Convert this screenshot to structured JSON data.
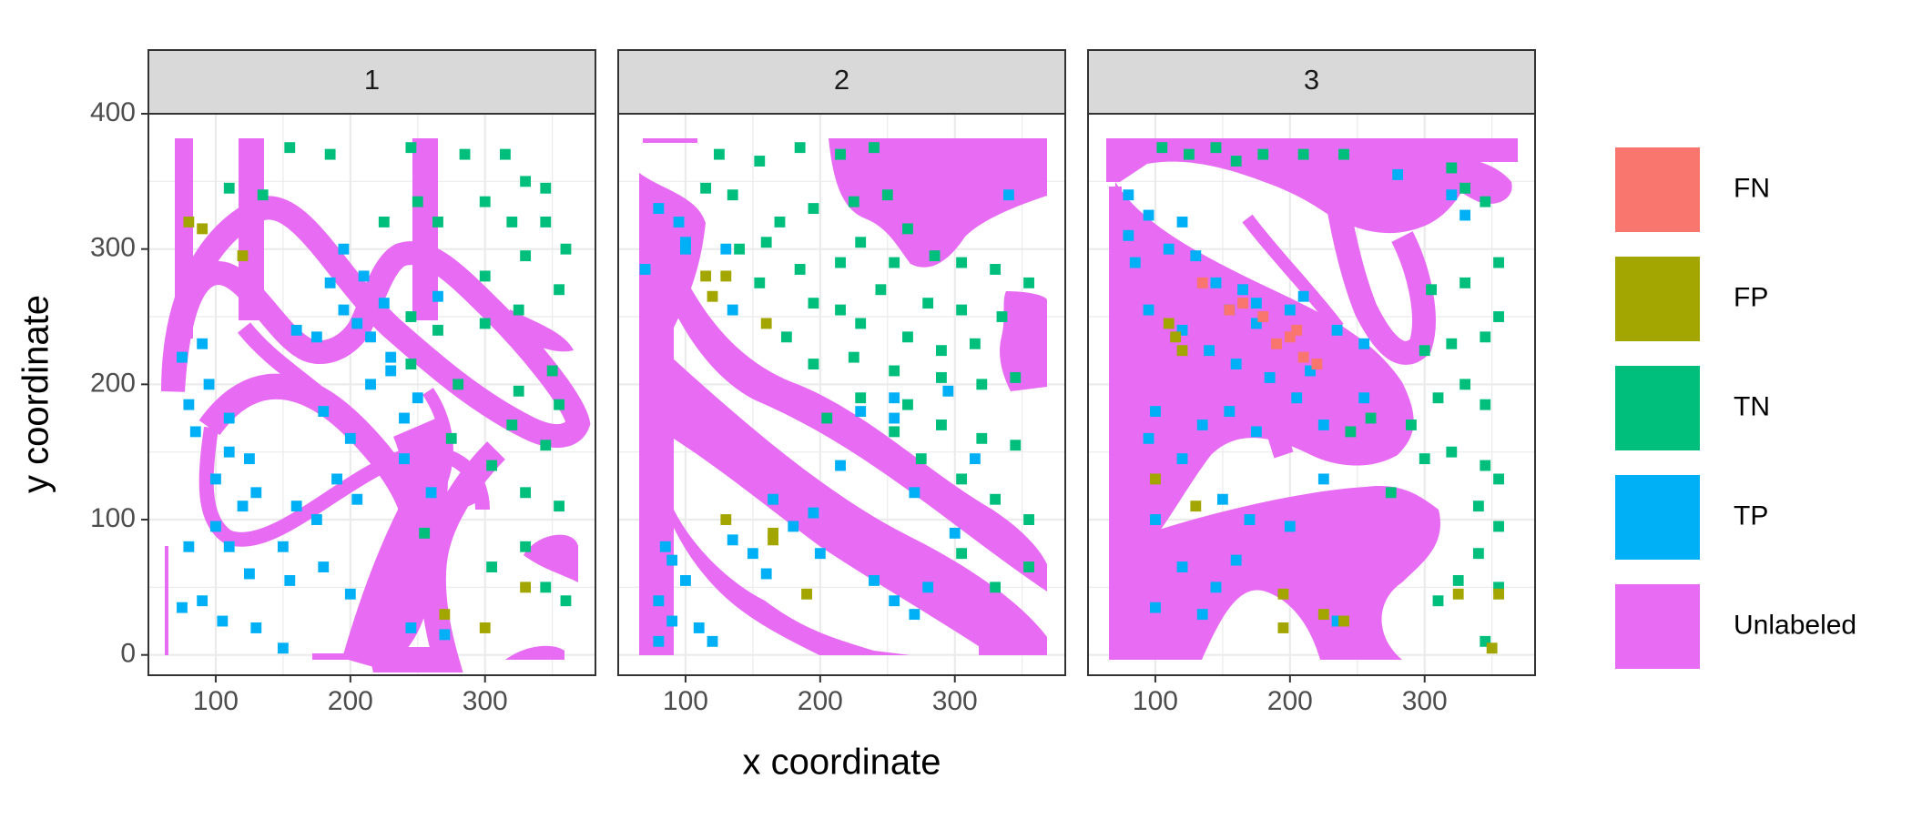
{
  "chart_data": {
    "type": "heatmap",
    "panels": [
      "1",
      "2",
      "3"
    ],
    "xlabel": "x coordinate",
    "ylabel": "y coordinate",
    "xlim": [
      50,
      382
    ],
    "ylim": [
      -15,
      400
    ],
    "x_ticks": [
      100,
      200,
      300
    ],
    "y_ticks": [
      0,
      100,
      200,
      300,
      400
    ],
    "x_tick_labels": [
      "100",
      "200",
      "300"
    ],
    "y_tick_labels": [
      "0",
      "100",
      "200",
      "300",
      "400"
    ],
    "grid": true,
    "legend_position": "right",
    "categories": [
      "FN",
      "FP",
      "TN",
      "TP",
      "Unlabeled"
    ],
    "colors": {
      "FN": "#F8766D",
      "FP": "#A3A500",
      "TN": "#00BF7D",
      "TP": "#00B0F6",
      "Unlabeled": "#E76BF3"
    },
    "tile_size": [
      8,
      8
    ],
    "cells": [
      {
        "panel": "1",
        "class": "TN",
        "points": [
          [
            155,
            375
          ],
          [
            185,
            370
          ],
          [
            245,
            375
          ],
          [
            285,
            370
          ],
          [
            315,
            370
          ],
          [
            330,
            350
          ],
          [
            345,
            345
          ],
          [
            300,
            335
          ],
          [
            250,
            335
          ],
          [
            225,
            320
          ],
          [
            265,
            320
          ],
          [
            320,
            320
          ],
          [
            345,
            320
          ],
          [
            360,
            300
          ],
          [
            330,
            295
          ],
          [
            300,
            280
          ],
          [
            355,
            270
          ],
          [
            325,
            255
          ],
          [
            300,
            245
          ],
          [
            350,
            210
          ],
          [
            325,
            195
          ],
          [
            355,
            185
          ],
          [
            320,
            170
          ],
          [
            345,
            155
          ],
          [
            305,
            140
          ],
          [
            330,
            120
          ],
          [
            355,
            110
          ],
          [
            330,
            80
          ],
          [
            305,
            65
          ],
          [
            345,
            50
          ],
          [
            360,
            40
          ],
          [
            110,
            345
          ],
          [
            135,
            340
          ],
          [
            245,
            250
          ],
          [
            265,
            240
          ],
          [
            245,
            215
          ],
          [
            280,
            200
          ],
          [
            275,
            160
          ],
          [
            255,
            90
          ]
        ]
      },
      {
        "panel": "1",
        "class": "TP",
        "points": [
          [
            90,
            230
          ],
          [
            75,
            220
          ],
          [
            95,
            200
          ],
          [
            80,
            185
          ],
          [
            85,
            165
          ],
          [
            110,
            175
          ],
          [
            110,
            150
          ],
          [
            125,
            145
          ],
          [
            100,
            130
          ],
          [
            130,
            120
          ],
          [
            120,
            110
          ],
          [
            100,
            95
          ],
          [
            110,
            80
          ],
          [
            150,
            80
          ],
          [
            175,
            100
          ],
          [
            160,
            110
          ],
          [
            180,
            180
          ],
          [
            200,
            160
          ],
          [
            215,
            200
          ],
          [
            230,
            220
          ],
          [
            250,
            190
          ],
          [
            240,
            175
          ],
          [
            175,
            235
          ],
          [
            160,
            240
          ],
          [
            195,
            255
          ],
          [
            205,
            245
          ],
          [
            215,
            235
          ],
          [
            225,
            260
          ],
          [
            265,
            265
          ],
          [
            240,
            145
          ],
          [
            260,
            120
          ],
          [
            190,
            130
          ],
          [
            205,
            115
          ],
          [
            125,
            60
          ],
          [
            155,
            55
          ],
          [
            180,
            65
          ],
          [
            200,
            45
          ],
          [
            245,
            20
          ],
          [
            270,
            15
          ],
          [
            90,
            40
          ],
          [
            105,
            25
          ],
          [
            130,
            20
          ],
          [
            150,
            5
          ],
          [
            80,
            80
          ],
          [
            75,
            35
          ],
          [
            230,
            210
          ],
          [
            185,
            275
          ],
          [
            210,
            280
          ],
          [
            195,
            300
          ]
        ]
      },
      {
        "panel": "1",
        "class": "FP",
        "points": [
          [
            80,
            320
          ],
          [
            90,
            315
          ],
          [
            270,
            30
          ],
          [
            300,
            20
          ],
          [
            330,
            50
          ],
          [
            120,
            295
          ]
        ]
      },
      {
        "panel": "2",
        "class": "TN",
        "points": [
          [
            125,
            370
          ],
          [
            155,
            365
          ],
          [
            185,
            375
          ],
          [
            215,
            370
          ],
          [
            240,
            375
          ],
          [
            115,
            345
          ],
          [
            135,
            340
          ],
          [
            195,
            330
          ],
          [
            225,
            335
          ],
          [
            250,
            340
          ],
          [
            265,
            315
          ],
          [
            170,
            320
          ],
          [
            230,
            305
          ],
          [
            140,
            300
          ],
          [
            160,
            305
          ],
          [
            215,
            290
          ],
          [
            185,
            285
          ],
          [
            255,
            290
          ],
          [
            285,
            295
          ],
          [
            305,
            290
          ],
          [
            330,
            285
          ],
          [
            355,
            275
          ],
          [
            155,
            275
          ],
          [
            195,
            260
          ],
          [
            215,
            255
          ],
          [
            245,
            270
          ],
          [
            280,
            260
          ],
          [
            305,
            255
          ],
          [
            335,
            250
          ],
          [
            230,
            245
          ],
          [
            265,
            235
          ],
          [
            290,
            225
          ],
          [
            315,
            230
          ],
          [
            225,
            220
          ],
          [
            255,
            210
          ],
          [
            195,
            215
          ],
          [
            175,
            235
          ],
          [
            290,
            205
          ],
          [
            320,
            200
          ],
          [
            345,
            205
          ],
          [
            230,
            190
          ],
          [
            265,
            185
          ],
          [
            205,
            175
          ],
          [
            255,
            165
          ],
          [
            290,
            170
          ],
          [
            320,
            160
          ],
          [
            345,
            155
          ],
          [
            275,
            145
          ],
          [
            305,
            130
          ],
          [
            330,
            115
          ],
          [
            355,
            100
          ],
          [
            355,
            65
          ],
          [
            330,
            50
          ],
          [
            305,
            75
          ]
        ]
      },
      {
        "panel": "2",
        "class": "TP",
        "points": [
          [
            80,
            330
          ],
          [
            95,
            320
          ],
          [
            130,
            300
          ],
          [
            70,
            285
          ],
          [
            100,
            305
          ],
          [
            85,
            80
          ],
          [
            90,
            70
          ],
          [
            100,
            55
          ],
          [
            80,
            40
          ],
          [
            90,
            25
          ],
          [
            110,
            20
          ],
          [
            80,
            10
          ],
          [
            120,
            10
          ],
          [
            135,
            85
          ],
          [
            150,
            75
          ],
          [
            165,
            115
          ],
          [
            180,
            95
          ],
          [
            195,
            105
          ],
          [
            200,
            75
          ],
          [
            160,
            60
          ],
          [
            240,
            55
          ],
          [
            255,
            40
          ],
          [
            280,
            50
          ],
          [
            270,
            30
          ],
          [
            255,
            175
          ],
          [
            270,
            120
          ],
          [
            300,
            90
          ],
          [
            215,
            140
          ],
          [
            230,
            180
          ],
          [
            255,
            190
          ],
          [
            295,
            195
          ],
          [
            315,
            145
          ],
          [
            135,
            255
          ],
          [
            100,
            300
          ],
          [
            340,
            340
          ]
        ]
      },
      {
        "panel": "2",
        "class": "FP",
        "points": [
          [
            115,
            280
          ],
          [
            130,
            280
          ],
          [
            120,
            265
          ],
          [
            130,
            100
          ],
          [
            165,
            85
          ],
          [
            165,
            90
          ],
          [
            190,
            45
          ],
          [
            160,
            245
          ]
        ]
      },
      {
        "panel": "3",
        "class": "TN",
        "points": [
          [
            105,
            375
          ],
          [
            125,
            370
          ],
          [
            145,
            375
          ],
          [
            160,
            365
          ],
          [
            180,
            370
          ],
          [
            210,
            370
          ],
          [
            240,
            370
          ],
          [
            320,
            360
          ],
          [
            330,
            345
          ],
          [
            345,
            335
          ],
          [
            355,
            290
          ],
          [
            330,
            275
          ],
          [
            305,
            270
          ],
          [
            355,
            250
          ],
          [
            345,
            235
          ],
          [
            320,
            230
          ],
          [
            300,
            225
          ],
          [
            330,
            200
          ],
          [
            345,
            185
          ],
          [
            310,
            190
          ],
          [
            290,
            170
          ],
          [
            320,
            150
          ],
          [
            345,
            140
          ],
          [
            355,
            130
          ],
          [
            300,
            145
          ],
          [
            340,
            110
          ],
          [
            355,
            95
          ],
          [
            340,
            75
          ],
          [
            325,
            55
          ],
          [
            310,
            40
          ],
          [
            355,
            50
          ],
          [
            345,
            10
          ],
          [
            275,
            120
          ],
          [
            260,
            175
          ],
          [
            245,
            165
          ]
        ]
      },
      {
        "panel": "3",
        "class": "TP",
        "points": [
          [
            80,
            340
          ],
          [
            95,
            325
          ],
          [
            120,
            320
          ],
          [
            80,
            310
          ],
          [
            110,
            300
          ],
          [
            85,
            290
          ],
          [
            130,
            295
          ],
          [
            145,
            275
          ],
          [
            165,
            270
          ],
          [
            155,
            255
          ],
          [
            175,
            260
          ],
          [
            200,
            255
          ],
          [
            210,
            265
          ],
          [
            95,
            255
          ],
          [
            120,
            240
          ],
          [
            140,
            225
          ],
          [
            160,
            215
          ],
          [
            175,
            245
          ],
          [
            185,
            205
          ],
          [
            205,
            190
          ],
          [
            215,
            210
          ],
          [
            235,
            240
          ],
          [
            255,
            230
          ],
          [
            255,
            190
          ],
          [
            225,
            170
          ],
          [
            135,
            170
          ],
          [
            155,
            180
          ],
          [
            175,
            165
          ],
          [
            95,
            160
          ],
          [
            120,
            145
          ],
          [
            100,
            100
          ],
          [
            150,
            115
          ],
          [
            170,
            100
          ],
          [
            200,
            95
          ],
          [
            225,
            130
          ],
          [
            120,
            65
          ],
          [
            145,
            50
          ],
          [
            160,
            70
          ],
          [
            100,
            35
          ],
          [
            135,
            30
          ],
          [
            235,
            25
          ],
          [
            320,
            340
          ],
          [
            330,
            325
          ],
          [
            280,
            355
          ],
          [
            100,
            180
          ]
        ]
      },
      {
        "panel": "3",
        "class": "FN",
        "points": [
          [
            155,
            255
          ],
          [
            165,
            260
          ],
          [
            180,
            250
          ],
          [
            200,
            235
          ],
          [
            205,
            240
          ],
          [
            210,
            220
          ],
          [
            220,
            215
          ],
          [
            135,
            275
          ],
          [
            190,
            230
          ]
        ]
      },
      {
        "panel": "3",
        "class": "FP",
        "points": [
          [
            110,
            245
          ],
          [
            115,
            235
          ],
          [
            120,
            225
          ],
          [
            130,
            110
          ],
          [
            100,
            130
          ],
          [
            195,
            45
          ],
          [
            195,
            20
          ],
          [
            225,
            30
          ],
          [
            240,
            25
          ],
          [
            350,
            5
          ],
          [
            325,
            45
          ],
          [
            355,
            45
          ]
        ]
      }
    ],
    "unlabeled_regions": [
      "1",
      "2",
      "3"
    ]
  }
}
